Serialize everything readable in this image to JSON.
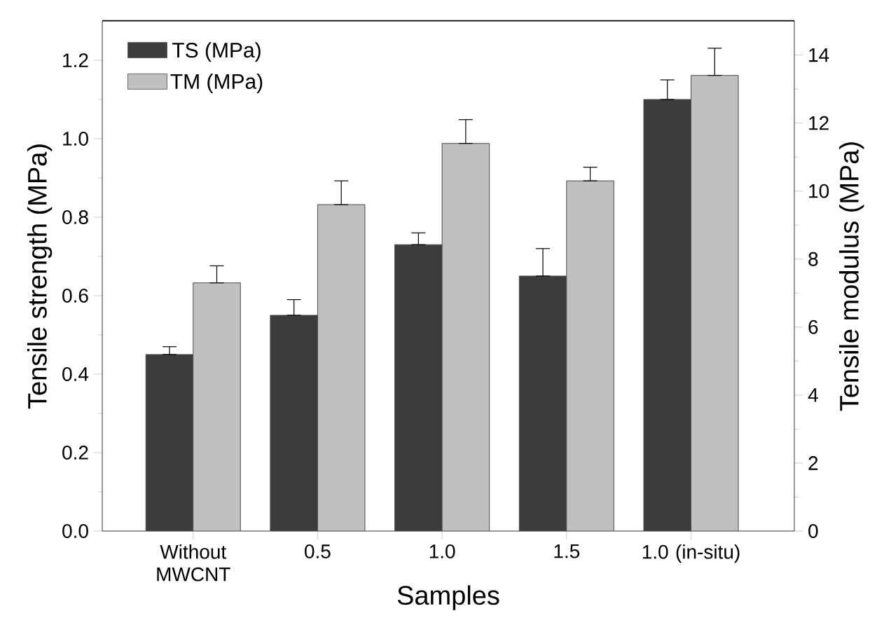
{
  "chart_data": {
    "type": "bar",
    "xlabel": "Samples",
    "ylabel": "Tensile strength (MPa)",
    "y2label": "Tensile modulus (MPa)",
    "categories": [
      "Without MWCNT",
      "0.5",
      "1.0",
      "1.5",
      "1.0 (in-situ)"
    ],
    "series": [
      {
        "name": "TS (MPa)",
        "color": "#3c3c3c",
        "values": [
          0.45,
          0.55,
          0.73,
          0.65,
          1.1
        ],
        "errors": [
          [
            0.45,
            0.47
          ],
          [
            0.55,
            0.59
          ],
          [
            0.73,
            0.76
          ],
          [
            0.65,
            0.72
          ],
          [
            1.1,
            1.15
          ]
        ]
      },
      {
        "name": "TM (MPa)",
        "color": "#c0c0c0",
        "axis": "y2",
        "values": [
          7.3,
          9.6,
          11.4,
          10.3,
          13.4
        ],
        "errors": [
          [
            7.3,
            7.8
          ],
          [
            9.6,
            10.3
          ],
          [
            11.4,
            12.1
          ],
          [
            10.3,
            10.7
          ],
          [
            13.4,
            14.2
          ]
        ]
      }
    ],
    "ylim": [
      0,
      1.3
    ],
    "yticks": [
      {
        "value": 0,
        "label": "0.0"
      },
      {
        "value": 0.2,
        "label": "0.2"
      },
      {
        "value": 0.4,
        "label": "0.4"
      },
      {
        "value": 0.6,
        "label": "0.6"
      },
      {
        "value": 0.8,
        "label": "0.8"
      },
      {
        "value": 1.0,
        "label": "1.0"
      },
      {
        "value": 1.2,
        "label": "1.2"
      }
    ],
    "y2lim": [
      0,
      15
    ],
    "y2ticks": [
      0,
      2,
      4,
      6,
      8,
      10,
      12,
      14
    ],
    "legend": "top left",
    "grid": false
  }
}
